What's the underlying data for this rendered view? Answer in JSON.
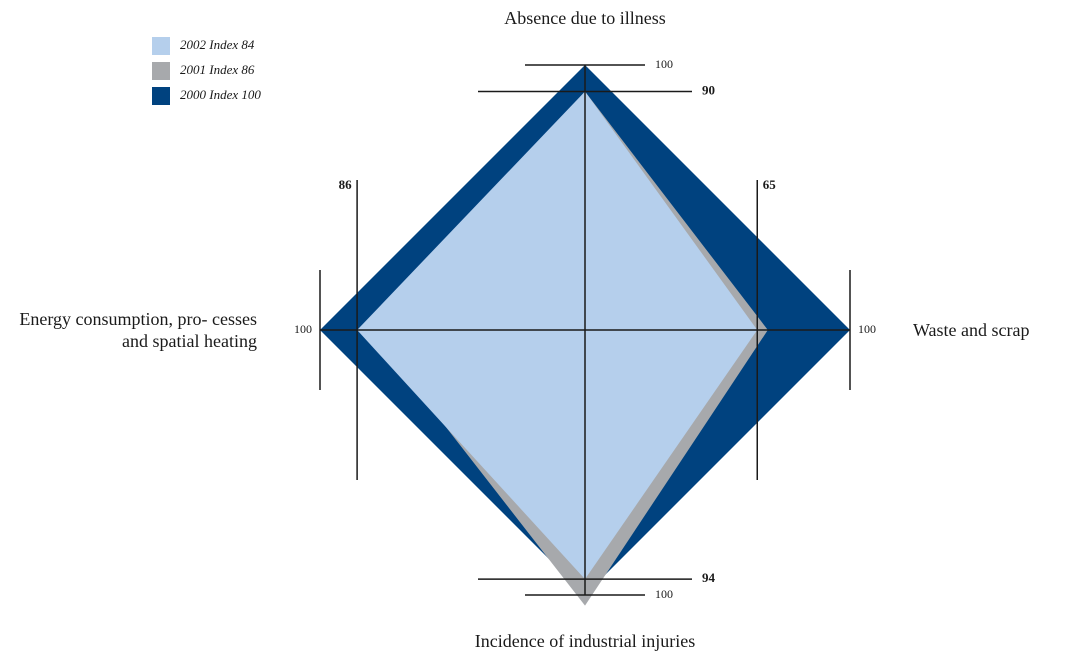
{
  "chart_data": {
    "type": "radar",
    "categories": [
      "Absence due to illness",
      "Waste and scrap",
      "Incidence of industrial injuries",
      "Energy consumption, pro- cesses and spatial heating"
    ],
    "series": [
      {
        "name": "2002 Index 84",
        "color": "#b5cfec",
        "values": [
          90,
          65,
          94,
          86
        ]
      },
      {
        "name": "2001 Index 86",
        "color": "#a7a9ac",
        "values": [
          90,
          69,
          104,
          81
        ]
      },
      {
        "name": "2000 Index 100",
        "color": "#00427f",
        "values": [
          100,
          100,
          100,
          100
        ]
      }
    ],
    "rlim": [
      0,
      100
    ],
    "axis_ticks": [
      [
        90,
        100
      ],
      [
        65,
        100
      ],
      [
        94,
        100
      ],
      [
        86,
        100
      ]
    ]
  }
}
